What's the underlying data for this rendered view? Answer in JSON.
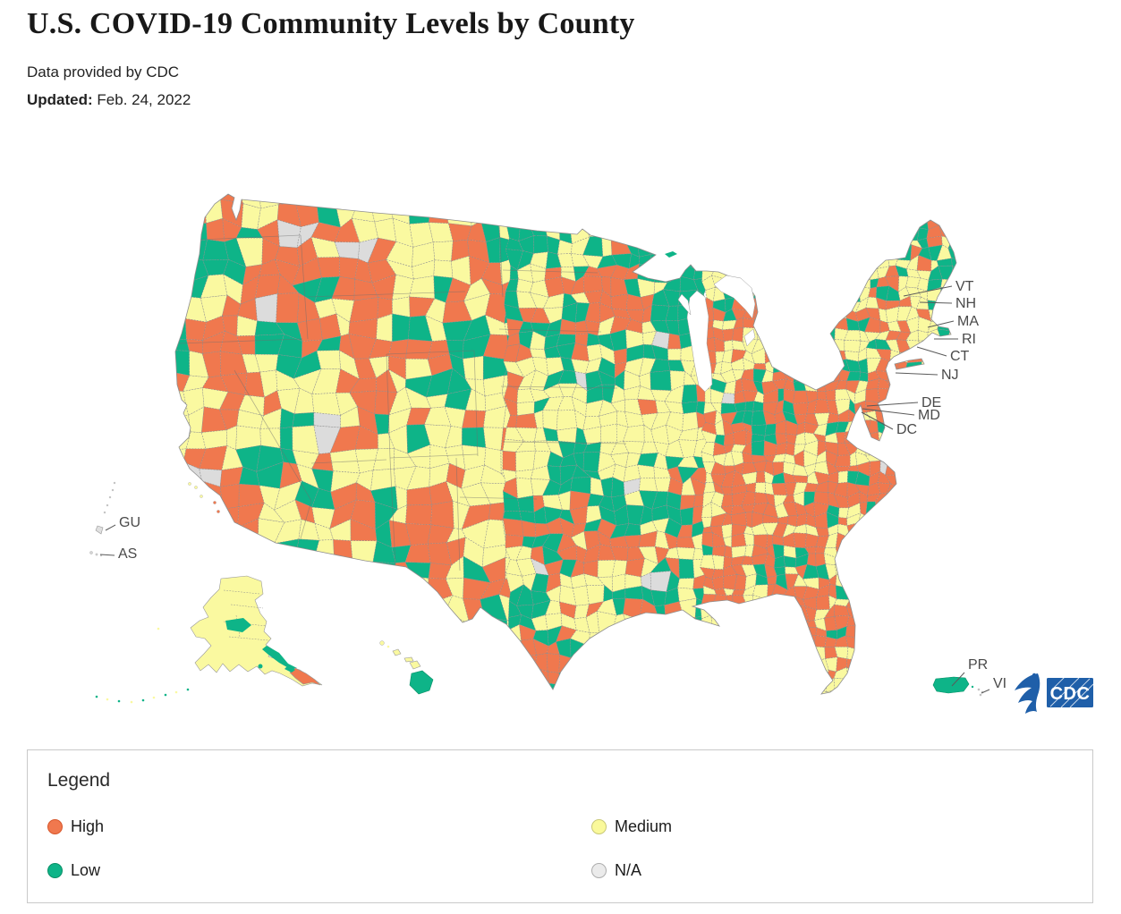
{
  "header": {
    "title": "U.S. COVID-19 Community Levels by County",
    "source_note": "Data provided by CDC",
    "updated_label": "Updated:",
    "updated_date": "Feb. 24, 2022"
  },
  "map": {
    "levels": {
      "high": "#F0784E",
      "medium": "#FAF9A0",
      "low": "#0EB488",
      "na": "#DCDCDC"
    },
    "state_callouts": [
      "VT",
      "NH",
      "MA",
      "RI",
      "CT",
      "NJ",
      "DE",
      "MD",
      "DC"
    ],
    "territory_callouts": [
      "GU",
      "AS",
      "PR",
      "VI"
    ],
    "logos": {
      "cdc_text": "CDC",
      "hhs_icon": "hhs-eagle",
      "brand_blue": "#1F5FA9"
    }
  },
  "legend": {
    "title": "Legend",
    "items": [
      {
        "label": "High",
        "fill": "#F0784E",
        "border": "#D8572B"
      },
      {
        "label": "Medium",
        "fill": "#FAF99B",
        "border": "#C9C977"
      },
      {
        "label": "Low",
        "fill": "#0EB488",
        "border": "#0A8F66"
      },
      {
        "label": "N/A",
        "fill": "#EBEBEB",
        "border": "#ADADAD"
      }
    ]
  }
}
